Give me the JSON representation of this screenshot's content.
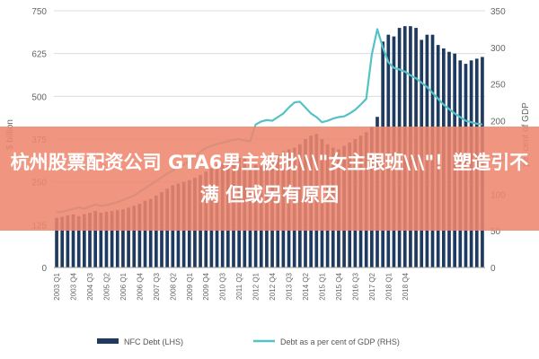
{
  "overlay": {
    "title": "杭州股票配资公司 GTA6男主被批\\\\\\\"女主跟班\\\\\\\"！塑造引不满 但或另有原因",
    "color": "#EE866E"
  },
  "chart_data": {
    "type": "bar",
    "title": "",
    "x_tick_labels": [
      "2003 Q1",
      "2003 Q4",
      "2004 Q3",
      "2005 Q2",
      "2006 Q1",
      "2006 Q4",
      "2007 Q3",
      "2008 Q2",
      "2009 Q1",
      "2009 Q4",
      "2010 Q3",
      "2011 Q2",
      "2012 Q1",
      "2012 Q4",
      "2013 Q3",
      "2014 Q2",
      "2015 Q1",
      "2015 Q4",
      "2016 Q3",
      "2017 Q2",
      "2018 Q1",
      "2018 Q4"
    ],
    "first_quarter": "2003 Q1",
    "last_quarter": "2018 Q4",
    "ylabel_left": "$ billion",
    "ylabel_right": "per cent of GDP",
    "ylim_left": [
      0,
      750
    ],
    "ylim_right": [
      0,
      350
    ],
    "yticks_left": [
      "0",
      "125",
      "250",
      "375",
      "500",
      "625",
      "750"
    ],
    "yticks_right": [
      "0",
      "50",
      "100",
      "150",
      "200",
      "250",
      "300",
      "350"
    ],
    "grid": true,
    "legend_position": "bottom",
    "series": [
      {
        "name": "NFC Debt (LHS)",
        "type": "bar",
        "axis": "left",
        "color": "#1F3A5F",
        "values": [
          145,
          148,
          152,
          155,
          150,
          156,
          160,
          165,
          160,
          163,
          165,
          168,
          170,
          175,
          180,
          186,
          195,
          200,
          210,
          220,
          230,
          240,
          245,
          250,
          255,
          262,
          270,
          280,
          290,
          300,
          305,
          310,
          315,
          320,
          325,
          310,
          300,
          305,
          310,
          320,
          330,
          340,
          345,
          350,
          360,
          375,
          385,
          390,
          375,
          360,
          350,
          345,
          355,
          365,
          375,
          385,
          395,
          410,
          440,
          660,
          680,
          675,
          700,
          705,
          705,
          700,
          665,
          680,
          680,
          650,
          640,
          630,
          625,
          605,
          595,
          605,
          610,
          615
        ]
      },
      {
        "name": "Debt as a per cent of GDP (RHS)",
        "type": "line",
        "axis": "right",
        "color": "#55C2C5",
        "values": [
          75,
          76,
          78,
          80,
          82,
          80,
          83,
          86,
          84,
          85,
          87,
          89,
          92,
          95,
          98,
          103,
          108,
          113,
          118,
          123,
          128,
          132,
          136,
          140,
          146,
          152,
          158,
          163,
          166,
          168,
          170,
          172,
          174,
          175,
          173,
          172,
          195,
          199,
          201,
          200,
          205,
          210,
          218,
          225,
          226,
          218,
          210,
          205,
          198,
          200,
          203,
          205,
          206,
          210,
          215,
          222,
          230,
          290,
          325,
          300,
          280,
          272,
          270,
          267,
          262,
          258,
          252,
          246,
          238,
          230,
          222,
          216,
          210,
          205,
          200,
          198,
          196,
          195
        ]
      }
    ]
  }
}
